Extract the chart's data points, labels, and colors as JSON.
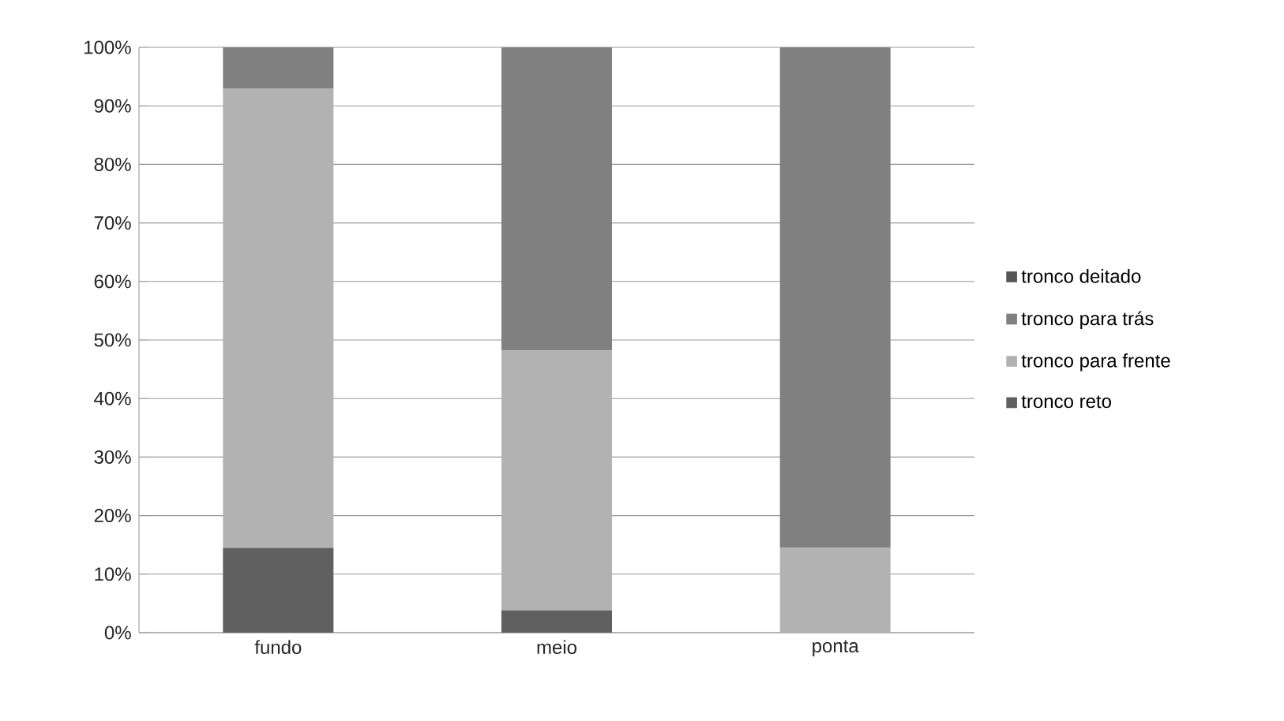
{
  "chart_data": {
    "type": "bar",
    "stacked": true,
    "categories": [
      "fundo",
      "meio",
      "ponta"
    ],
    "series": [
      {
        "name": "tronco reto",
        "color": "#606060",
        "values": [
          14.5,
          3.8,
          0
        ]
      },
      {
        "name": "tronco para frente",
        "color": "#b2b2b2",
        "values": [
          78.5,
          44.4,
          14.5
        ]
      },
      {
        "name": "tronco para trás",
        "color": "#808080",
        "values": [
          7.0,
          51.8,
          85.5
        ]
      },
      {
        "name": "tronco deitado",
        "color": "#555555",
        "values": [
          0,
          0,
          0
        ]
      }
    ],
    "ylim": [
      0,
      100
    ],
    "yticks": [
      {
        "value": 0,
        "label": "0%"
      },
      {
        "value": 10,
        "label": "10%"
      },
      {
        "value": 20,
        "label": "20%"
      },
      {
        "value": 30,
        "label": "30%"
      },
      {
        "value": 40,
        "label": "40%"
      },
      {
        "value": 50,
        "label": "50%"
      },
      {
        "value": 60,
        "label": "60%"
      },
      {
        "value": 70,
        "label": "70%"
      },
      {
        "value": 80,
        "label": "80%"
      },
      {
        "value": 90,
        "label": "90%"
      },
      {
        "value": 100,
        "label": "100%"
      }
    ],
    "grid": "y",
    "legend": "right"
  }
}
